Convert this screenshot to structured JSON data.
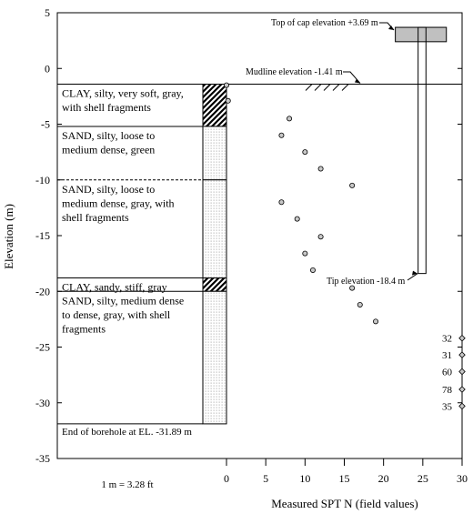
{
  "chart_data": {
    "type": "scatter",
    "ylabel": "Elevation (m)",
    "xlabel": "Measured SPT N (field values)",
    "conversion_note": "1 m = 3.28 ft",
    "ylim": [
      -35,
      5
    ],
    "xlim": [
      0,
      30
    ],
    "y_ticks": [
      5,
      0,
      -5,
      -10,
      -15,
      -20,
      -25,
      -30,
      -35
    ],
    "x_ticks": [
      0,
      5,
      10,
      15,
      20,
      25,
      30
    ],
    "y_tick_labels": [
      "5",
      "0",
      "-5",
      "-10",
      "-15",
      "-20",
      "-25",
      "-30",
      "-35"
    ],
    "x_tick_labels": [
      "0",
      "5",
      "10",
      "15",
      "20",
      "25",
      "30"
    ],
    "grid": false,
    "layers": [
      {
        "label_lines": [
          "CLAY, silty, very soft, gray,",
          "with shell fragments"
        ],
        "top": -1.41,
        "bottom": -5.2,
        "pattern": "clay",
        "top_line": "solid"
      },
      {
        "label_lines": [
          "SAND, silty, loose to",
          "medium dense, green"
        ],
        "top": -5.2,
        "bottom": -10.0,
        "pattern": "sand",
        "top_line": "solid"
      },
      {
        "label_lines": [
          "SAND, silty, loose to",
          "medium dense, gray, with",
          "shell fragments"
        ],
        "top": -10.0,
        "bottom": -18.8,
        "pattern": "sand",
        "top_line": "dashed"
      },
      {
        "label_lines": [
          "CLAY, sandy, stiff, gray"
        ],
        "top": -18.8,
        "bottom": -20.0,
        "pattern": "clay",
        "top_line": "solid"
      },
      {
        "label_lines": [
          "SAND, silty, medium dense",
          "to dense, gray, with shell",
          "fragments"
        ],
        "top": -20.0,
        "bottom": -31.89,
        "pattern": "sand",
        "top_line": "solid"
      }
    ],
    "end_of_borehole_label": "End of borehole at EL. -31.89 m",
    "borehole_bottom": -31.89,
    "spt_points": [
      {
        "n": 0,
        "elev": -1.5
      },
      {
        "n": 0.2,
        "elev": -2.9
      },
      {
        "n": 8,
        "elev": -4.5
      },
      {
        "n": 7,
        "elev": -6.0
      },
      {
        "n": 10,
        "elev": -7.5
      },
      {
        "n": 12,
        "elev": -9.0
      },
      {
        "n": 16,
        "elev": -10.5
      },
      {
        "n": 7,
        "elev": -12.0
      },
      {
        "n": 9,
        "elev": -13.5
      },
      {
        "n": 12,
        "elev": -15.1
      },
      {
        "n": 10,
        "elev": -16.6
      },
      {
        "n": 11,
        "elev": -18.1
      },
      {
        "n": 16,
        "elev": -19.7
      },
      {
        "n": 17,
        "elev": -21.2
      },
      {
        "n": 19,
        "elev": -22.7
      }
    ],
    "offscale_points": [
      {
        "label": "32",
        "elev": -24.2
      },
      {
        "label": "31",
        "elev": -25.7
      },
      {
        "label": "60",
        "elev": -27.2
      },
      {
        "label": "78",
        "elev": -28.8
      },
      {
        "label": "35",
        "elev": -30.3
      }
    ],
    "annotations": {
      "cap_label": "Top of cap elevation +3.69 m",
      "cap_top": 3.69,
      "cap_bottom": 2.4,
      "cap_x": [
        21.5,
        28
      ],
      "pile_x": [
        24.4,
        25.4
      ],
      "mudline_label": "Mudline elevation -1.41 m",
      "mudline": -1.41,
      "tip_label": "Tip elevation -18.4 m",
      "tip": -18.4
    }
  }
}
